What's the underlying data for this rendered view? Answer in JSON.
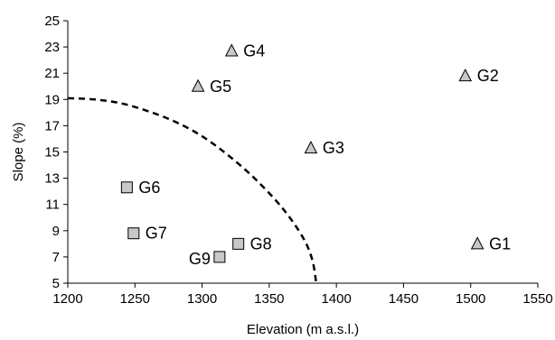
{
  "chart_data": {
    "type": "scatter",
    "title": "",
    "xlabel": "Elevation (m a.s.l.)",
    "ylabel": "Slope (%)",
    "xlim": [
      1200,
      1550
    ],
    "ylim": [
      5,
      25
    ],
    "xticks": [
      1200,
      1250,
      1300,
      1350,
      1400,
      1450,
      1500,
      1550
    ],
    "yticks": [
      5,
      7,
      9,
      11,
      13,
      15,
      17,
      19,
      21,
      23,
      25
    ],
    "grid": false,
    "marker_fill": "#c8c8c8",
    "marker_stroke": "#000000",
    "curve_color": "#000000",
    "points": [
      {
        "label": "G1",
        "x": 1505,
        "y": 8.0,
        "marker": "triangle"
      },
      {
        "label": "G2",
        "x": 1496,
        "y": 20.8,
        "marker": "triangle"
      },
      {
        "label": "G3",
        "x": 1381,
        "y": 15.3,
        "marker": "triangle"
      },
      {
        "label": "G4",
        "x": 1322,
        "y": 22.7,
        "marker": "triangle"
      },
      {
        "label": "G5",
        "x": 1297,
        "y": 20.0,
        "marker": "triangle"
      },
      {
        "label": "G6",
        "x": 1244,
        "y": 12.3,
        "marker": "square"
      },
      {
        "label": "G7",
        "x": 1249,
        "y": 8.8,
        "marker": "square"
      },
      {
        "label": "G8",
        "x": 1327,
        "y": 8.0,
        "marker": "square"
      },
      {
        "label": "G9",
        "x": 1313,
        "y": 7.0,
        "marker": "square"
      }
    ],
    "boundary_curve": {
      "style": "dashed",
      "points": [
        [
          1200,
          19.1
        ],
        [
          1220,
          19.0
        ],
        [
          1240,
          18.7
        ],
        [
          1260,
          18.1
        ],
        [
          1280,
          17.3
        ],
        [
          1300,
          16.2
        ],
        [
          1320,
          14.7
        ],
        [
          1340,
          12.9
        ],
        [
          1360,
          10.7
        ],
        [
          1375,
          8.5
        ],
        [
          1382,
          6.8
        ],
        [
          1385,
          5.0
        ]
      ]
    }
  }
}
